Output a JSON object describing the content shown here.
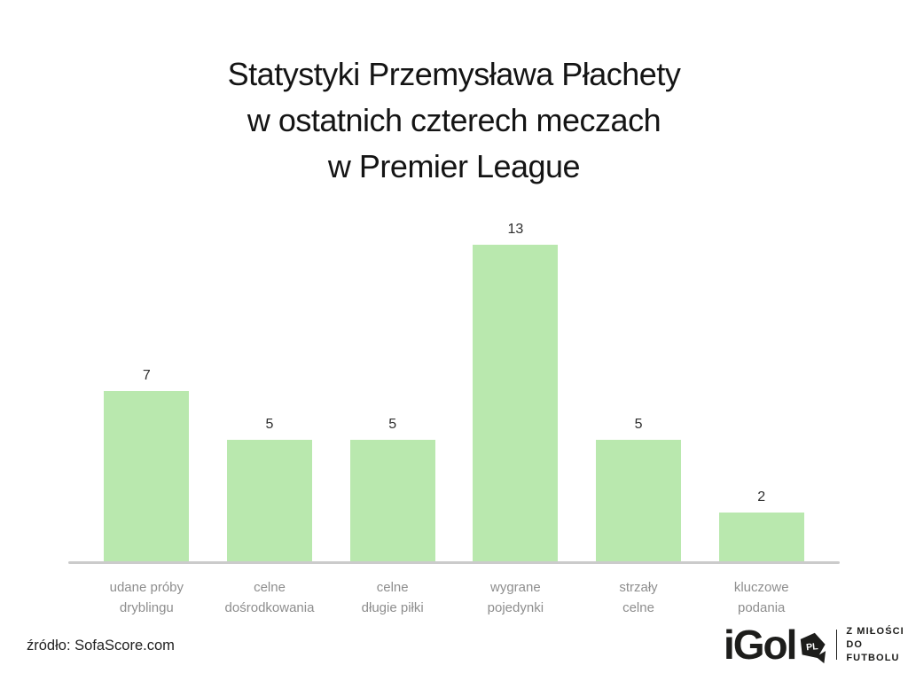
{
  "chart_data": {
    "type": "bar",
    "title": "Statystyki Przemysława Płachety w ostatnich czterech meczach w Premier League",
    "title_lines": [
      "Statystyki Przemysława Płachety",
      "w ostatnich czterech meczach",
      "w Premier League"
    ],
    "categories": [
      "udane próby\ndryblingu",
      "celne\ndośrodkowania",
      "celne\ndługie piłki",
      "wygrane\npojedynki",
      "strzały\ncelne",
      "kluczowe\npodania"
    ],
    "values": [
      7,
      5,
      5,
      13,
      5,
      2
    ],
    "xlabel": "",
    "ylabel": "",
    "ylim": [
      0,
      13
    ],
    "grid": false,
    "legend": false,
    "bar_color": "#b9e8ae",
    "axis_color": "#cbcbcb",
    "value_label_color": "#2e2e2e",
    "category_label_color": "#8e8e8e"
  },
  "footer": {
    "source_label": "źródło: SofaScore.com"
  },
  "logo": {
    "wordmark": "iGol",
    "badge_text": "PL",
    "tagline": "Z MIŁOŚCI\nDO FUTBOLU",
    "color": "#1d1d1b"
  }
}
